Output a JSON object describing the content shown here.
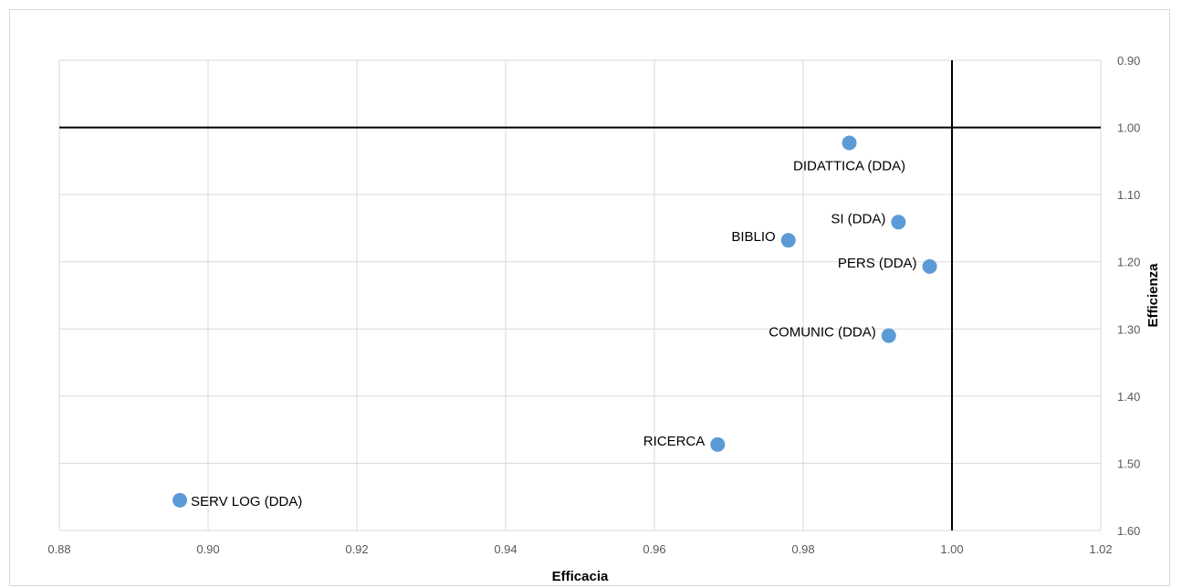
{
  "chart_data": {
    "type": "scatter",
    "title": "",
    "xlabel": "Efficacia",
    "ylabel": "Efficienza",
    "xlim": [
      0.88,
      1.02
    ],
    "ylim": [
      0.9,
      1.6
    ],
    "y_axis_reversed": true,
    "y_axis_position": "right",
    "grid": true,
    "legend": "none",
    "x_ticks": [
      "0.88",
      "0.90",
      "0.92",
      "0.94",
      "0.96",
      "0.98",
      "1.00",
      "1.02"
    ],
    "y_ticks": [
      "0.90",
      "1.00",
      "1.10",
      "1.20",
      "1.30",
      "1.40",
      "1.50",
      "1.60"
    ],
    "reference_lines": {
      "x": 1.0,
      "y": 1.0
    },
    "colors": {
      "marker": "#5b9bd5",
      "grid": "#d9d9d9",
      "reference": "#000000"
    },
    "points": [
      {
        "label": "DIDATTICA (DDA)",
        "x": 0.9862,
        "y": 1.023,
        "label_pos": "below"
      },
      {
        "label": "SI (DDA)",
        "x": 0.9928,
        "y": 1.141,
        "label_pos": "left"
      },
      {
        "label": "BIBLIO",
        "x": 0.978,
        "y": 1.168,
        "label_pos": "left"
      },
      {
        "label": "PERS (DDA)",
        "x": 0.997,
        "y": 1.207,
        "label_pos": "left"
      },
      {
        "label": "COMUNIC (DDA)",
        "x": 0.9915,
        "y": 1.31,
        "label_pos": "left"
      },
      {
        "label": "RICERCA",
        "x": 0.9685,
        "y": 1.472,
        "label_pos": "left"
      },
      {
        "label": "SERV LOG (DDA)",
        "x": 0.8962,
        "y": 1.555,
        "label_pos": "right"
      }
    ]
  }
}
